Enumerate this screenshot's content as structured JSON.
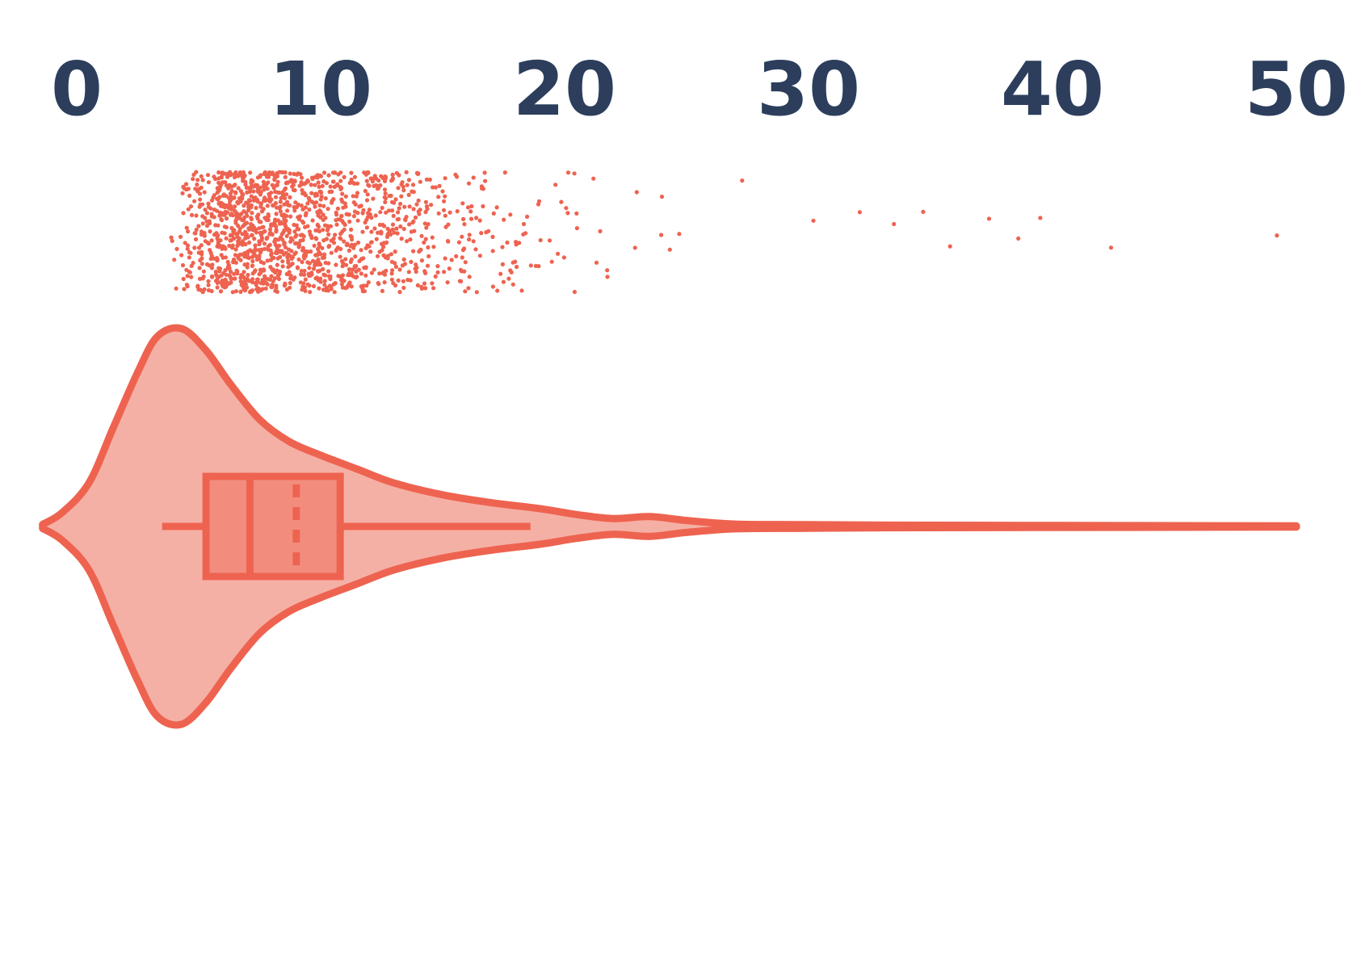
{
  "chart_data": {
    "type": "violin",
    "title": "",
    "xlabel": "",
    "ylabel": "",
    "xlim": [
      -1.4,
      50
    ],
    "x_ticks": [
      "0",
      "10",
      "20",
      "30",
      "40",
      "50"
    ],
    "x_tick_values": [
      0,
      10,
      20,
      30,
      40,
      50
    ],
    "tick_position": "top",
    "grid": false,
    "legend": "none",
    "series": [
      {
        "distribution": {
          "min": 3.5,
          "q1": 5.3,
          "median": 7.1,
          "mean": 9.0,
          "q3": 10.8,
          "whisker_low": 3.5,
          "whisker_high": 18.6,
          "max": 49.2
        },
        "density_curve": {
          "x": [
            -1.4,
            -0.6,
            0.5,
            1.5,
            2.5,
            3.3,
            4.3,
            5.3,
            6.3,
            7.5,
            8.7,
            10.0,
            11.5,
            13.0,
            15.0,
            17.0,
            19.0,
            20.5,
            22.0,
            23.5,
            25.0,
            27.0,
            30.0,
            35.0,
            40.0,
            45.0,
            50.0
          ],
          "half_width": [
            0.01,
            0.07,
            0.22,
            0.5,
            0.78,
            0.96,
            1.0,
            0.89,
            0.72,
            0.54,
            0.43,
            0.36,
            0.29,
            0.22,
            0.16,
            0.12,
            0.09,
            0.06,
            0.04,
            0.05,
            0.03,
            0.012,
            0.009,
            0.006,
            0.005,
            0.004,
            0.003
          ]
        },
        "jitter_points": {
          "count": 1500,
          "seed": 12345,
          "min": 3.5,
          "shift": 2.0,
          "mean_excess": 5.0,
          "outliers": [
            30.2,
            32.1,
            33.5,
            34.7,
            35.8,
            37.4,
            38.6,
            39.5,
            42.4,
            49.2
          ]
        }
      }
    ]
  },
  "colors": {
    "tick_label": "#2c3e5c",
    "violin_stroke": "#ee6350",
    "violin_fill": "#f5b0a5",
    "box_fill": "#f28d7e",
    "points": "#ee6350"
  }
}
